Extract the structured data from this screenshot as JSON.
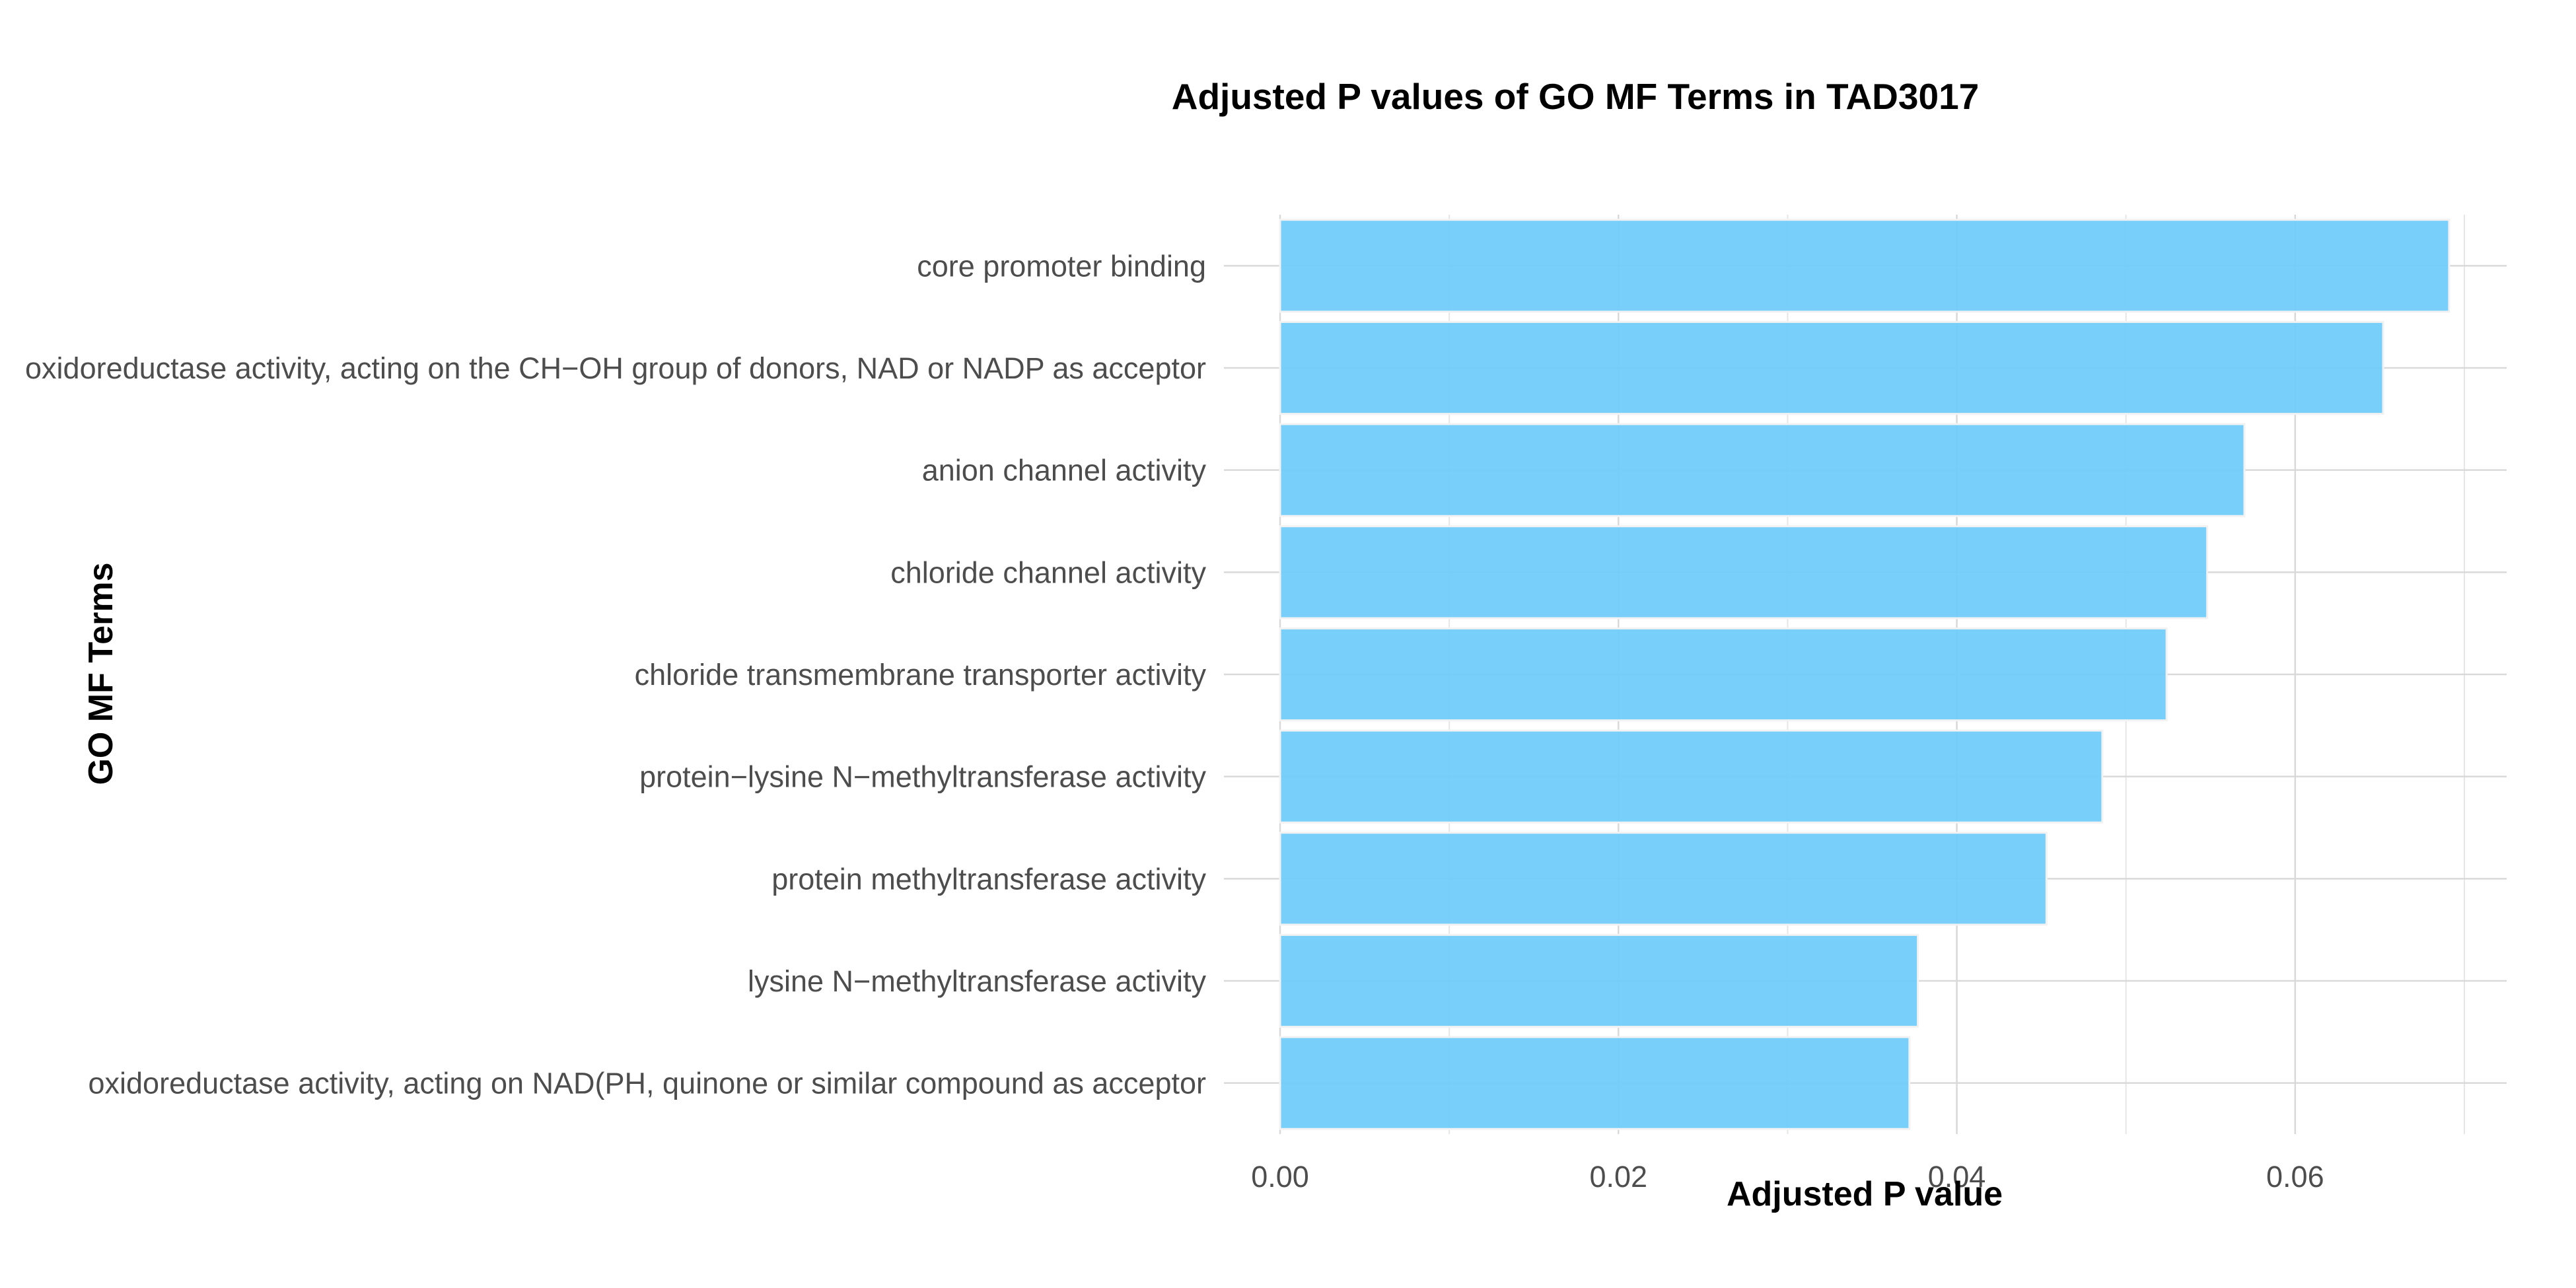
{
  "chart_data": {
    "type": "bar",
    "orientation": "horizontal",
    "title": "Adjusted P values of GO MF Terms in TAD3017",
    "xlabel": "Adjusted P value",
    "ylabel": "GO MF Terms",
    "categories": [
      "core promoter binding",
      "oxidoreductase activity, acting on the CH−OH group of donors, NAD or NADP as acceptor",
      "anion channel activity",
      "chloride channel activity",
      "chloride transmembrane transporter activity",
      "protein−lysine N−methyltransferase activity",
      "protein methyltransferase activity",
      "lysine N−methyltransferase activity",
      "oxidoreductase activity, acting on NAD(PH, quinone or similar compound as acceptor"
    ],
    "values": [
      0.0691,
      0.0652,
      0.057,
      0.0548,
      0.0524,
      0.0486,
      0.0453,
      0.0377,
      0.0372
    ],
    "xlim": [
      0,
      0.0725
    ],
    "xticks": [
      0.0,
      0.02,
      0.04,
      0.06
    ],
    "xtick_labels": [
      "0.00",
      "0.02",
      "0.04",
      "0.06"
    ],
    "grid": true,
    "legend": "none",
    "bar_color": "#6ECBFA",
    "bar_outline_color": "#F2F2F2"
  }
}
